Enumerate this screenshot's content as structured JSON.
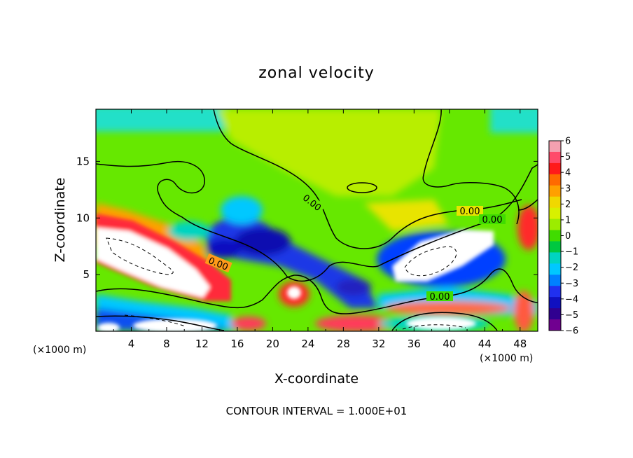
{
  "chart_data": {
    "type": "heatmap",
    "title": "zonal velocity",
    "xlabel": "X-coordinate",
    "ylabel": "Z-coordinate",
    "x_unit": "(×1000 m)",
    "y_unit": "(×1000 m)",
    "xlim": [
      0,
      50
    ],
    "ylim": [
      0,
      19.6
    ],
    "x_ticks": [
      "4",
      "8",
      "12",
      "16",
      "20",
      "24",
      "28",
      "32",
      "36",
      "40",
      "44",
      "48"
    ],
    "y_ticks": [
      "5",
      "10",
      "15"
    ],
    "colorbar": {
      "range": [
        -6,
        6
      ],
      "ticks": [
        "6",
        "5",
        "4",
        "3",
        "2",
        "1",
        "0",
        "−1",
        "−2",
        "−3",
        "−4",
        "−5",
        "−6"
      ],
      "colors": [
        "#f4a0b0",
        "#ff4a6a",
        "#ff1a1a",
        "#ff6a00",
        "#ffa000",
        "#f0d800",
        "#d8f000",
        "#9cec00",
        "#40dc00",
        "#00c840",
        "#00d4c0",
        "#00c8ff",
        "#0080ff",
        "#2030f0",
        "#1010c0",
        "#300090",
        "#700090"
      ]
    },
    "contour_labels": [
      "0.00",
      "0.00",
      "0.00",
      "0.00",
      "0.00"
    ],
    "footer": "CONTOUR INTERVAL = 1.000E+01"
  }
}
